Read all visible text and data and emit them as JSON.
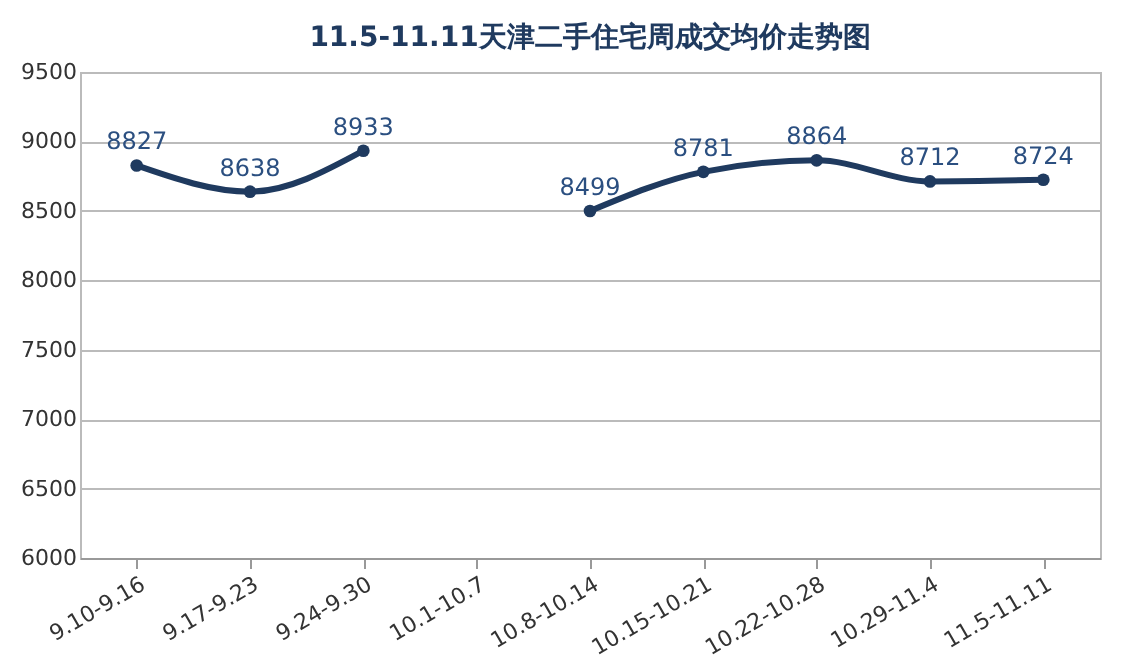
{
  "chart_data": {
    "type": "line",
    "title": "11.5-11.11天津二手住宅周成交均价走势图",
    "categories": [
      "9.10-9.16",
      "9.17-9.23",
      "9.24-9.30",
      "10.1-10.7",
      "10.8-10.14",
      "10.15-10.21",
      "10.22-10.28",
      "10.29-11.4",
      "11.5-11.11"
    ],
    "series": [
      {
        "color": "#1f3a5f",
        "values": [
          8827,
          8638,
          8933,
          null,
          8499,
          8781,
          8864,
          8712,
          8724
        ]
      }
    ],
    "ylim": [
      6000,
      9500
    ],
    "yticks": [
      6000,
      6500,
      7000,
      7500,
      8000,
      8500,
      9000,
      9500
    ],
    "grid": "y",
    "marker": "circle",
    "line_style": "solid",
    "data_labels": true
  }
}
